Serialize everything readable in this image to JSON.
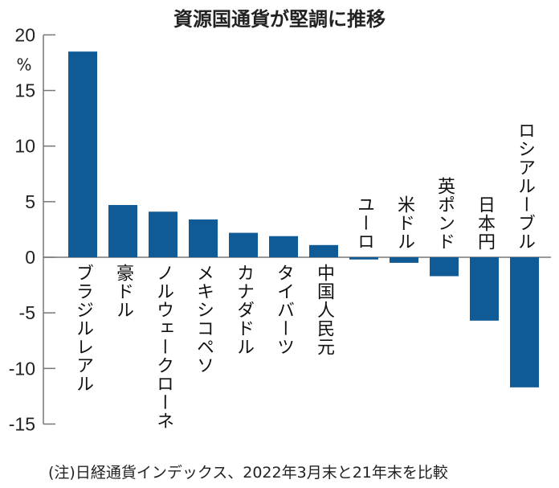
{
  "chart_data": {
    "type": "bar",
    "title": "資源国通貨が堅調に推移",
    "ylabel": "%",
    "ylim": [
      -15,
      20
    ],
    "yticks": [
      20,
      15,
      10,
      5,
      0,
      -5,
      -10,
      -15
    ],
    "categories": [
      "ブラジルレアル",
      "豪ドル",
      "ノルウェークローネ",
      "メキシコペソ",
      "カナダドル",
      "タイバーツ",
      "中国人民元",
      "ユーロ",
      "米ドル",
      "英ポンド",
      "日本円",
      "ロシアルーブル"
    ],
    "values": [
      18.5,
      4.7,
      4.1,
      3.4,
      2.2,
      1.9,
      1.1,
      -0.2,
      -0.5,
      -1.7,
      -5.7,
      -11.7
    ],
    "bar_color": "#105a96",
    "note": "(注)日経通貨インデックス、2022年3月末と21年末を比較"
  }
}
